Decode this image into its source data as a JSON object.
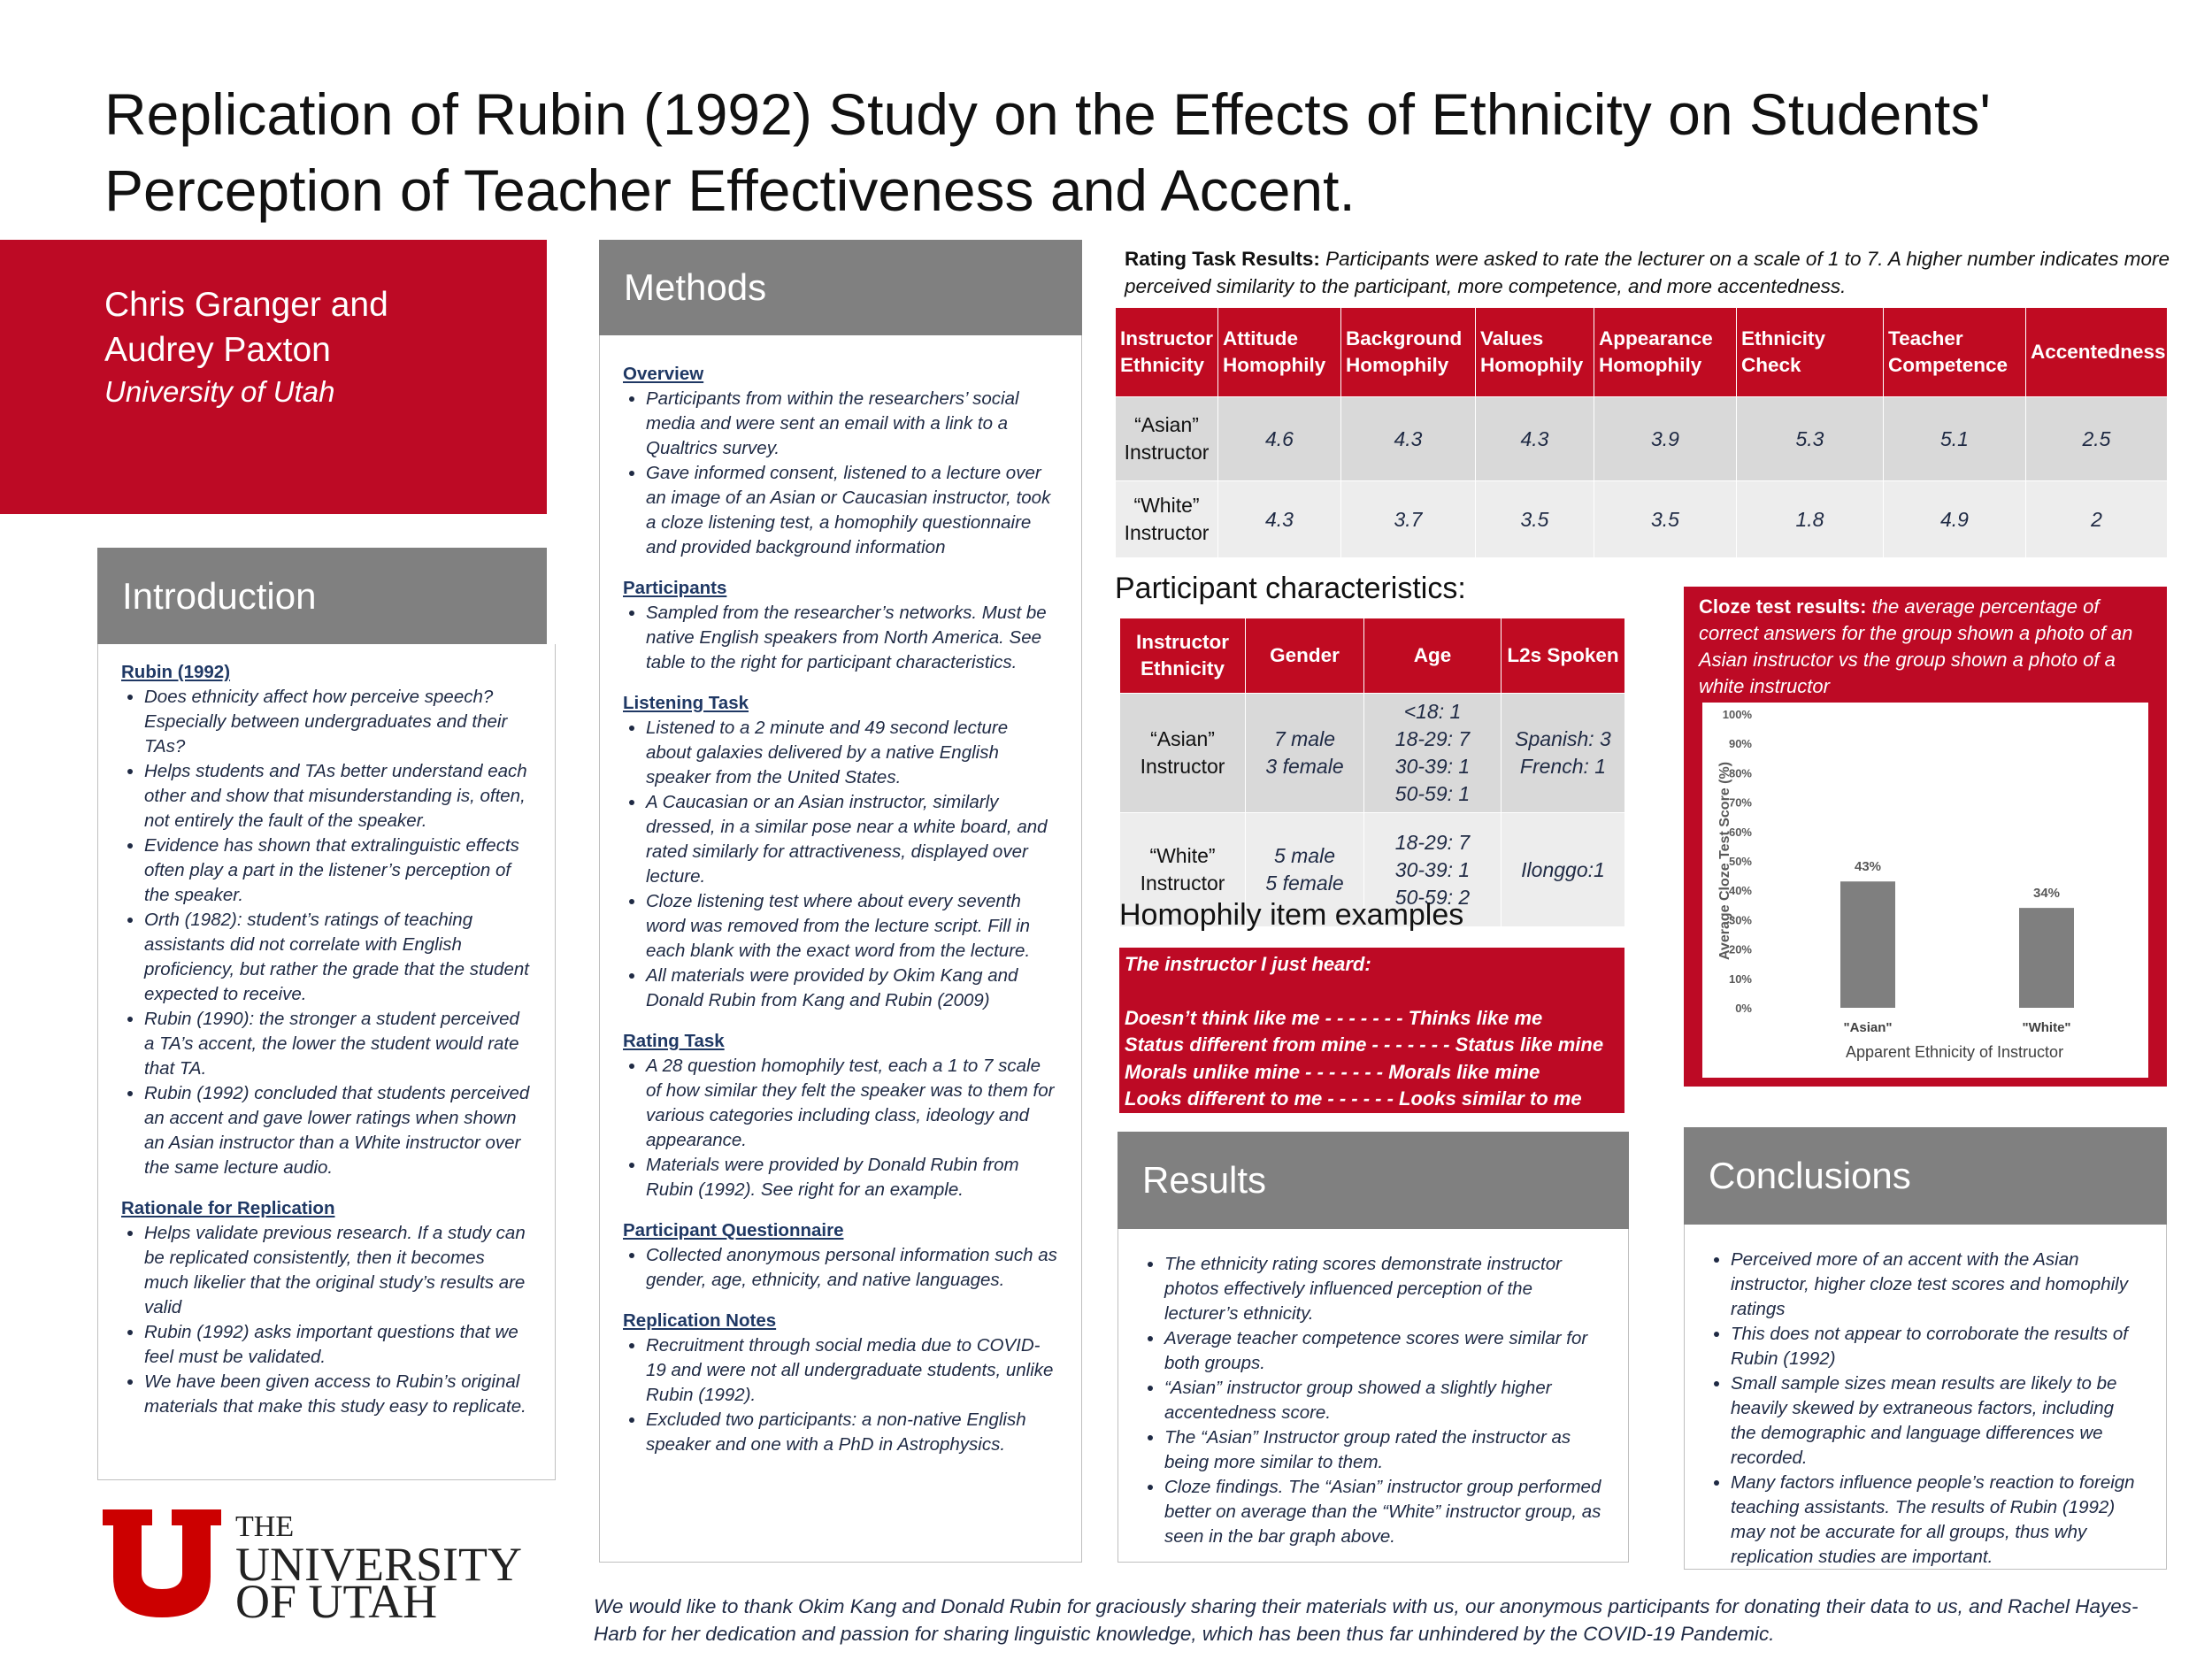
{
  "title": [
    "Replication of Rubin (1992) Study on the Effects of Ethnicity on Students'",
    "Perception of Teacher Effectiveness and Accent."
  ],
  "authors": {
    "line1": "Chris Granger and",
    "line2": "Audrey Paxton",
    "affiliation": "University of Utah"
  },
  "introduction": {
    "header": "Introduction",
    "blocks": [
      {
        "heading": "Rubin (1992)",
        "items": [
          "Does ethnicity affect how perceive speech? Especially between undergraduates and their TAs?",
          "Helps students and TAs better understand each other and show that misunderstanding is, often, not entirely the fault of the speaker.",
          "Evidence has shown that extralinguistic effects often play a part in the listener’s perception of the speaker.",
          "Orth (1982):  student’s ratings of teaching assistants did not correlate with English proficiency, but rather the grade that the student expected to receive.",
          "Rubin (1990): the stronger a student perceived a TA’s accent, the lower the student would rate that TA.",
          "Rubin (1992) concluded that  students perceived an accent and gave lower ratings when shown an Asian instructor than a White instructor over the same lecture audio."
        ]
      },
      {
        "heading": "Rationale for Replication",
        "items": [
          "Helps validate previous research. If a study can be replicated consistently, then it becomes much likelier that the original study’s results are valid",
          "Rubin (1992) asks important questions that we feel must be validated.",
          "We have been given access to Rubin’s original materials that make this study easy to replicate."
        ]
      }
    ]
  },
  "methods": {
    "header": "Methods",
    "blocks": [
      {
        "heading": "Overview",
        "items": [
          "Participants from within the researchers’ social media and were sent an email with a link to a Qualtrics survey.",
          "Gave informed consent, listened to a lecture over an image of an Asian or Caucasian instructor, took a cloze listening test, a homophily questionnaire and provided background information"
        ]
      },
      {
        "heading": "Participants",
        "items": [
          "Sampled from the researcher’s networks. Must be native English speakers from North America. See table to the right for participant characteristics."
        ]
      },
      {
        "heading": "Listening Task",
        "items": [
          "Listened to a 2 minute and 49 second lecture about galaxies delivered by a native English speaker from the United States.",
          " A Caucasian or an Asian instructor, similarly dressed, in a similar pose near a white board, and rated similarly for attractiveness, displayed over lecture.",
          "Cloze listening test where about every seventh word was removed from the lecture script. Fill in each blank with the exact word from the lecture.",
          "All materials were provided  by Okim Kang and Donald Rubin from Kang and Rubin (2009)"
        ]
      },
      {
        "heading": "Rating Task",
        "items": [
          "A 28 question homophily test, each a 1 to 7 scale of how similar they felt the speaker was to them for various categories including class, ideology and appearance.",
          "Materials were provided  by Donald Rubin from Rubin (1992). See right for an example."
        ]
      },
      {
        "heading": "Participant Questionnaire",
        "items": [
          "Collected anonymous personal information such as gender, age, ethnicity, and native languages."
        ]
      },
      {
        "heading": "Replication Notes",
        "items": [
          "Recruitment through social media due to COVID-19 and were not all undergraduate students, unlike Rubin (1992).",
          "Excluded two participants:  a non-native English speaker and one with a PhD in Astrophysics."
        ]
      }
    ]
  },
  "rating_results": {
    "label": "Rating Task Results:",
    "text": "Participants were asked to rate the lecturer on a scale of 1 to 7. A higher number indicates more perceived similarity to the participant, more competence, and more accentedness."
  },
  "rating_table": {
    "headers": [
      "Instructor Ethnicity",
      "Attitude Homophily",
      "Background Homophily",
      "Values Homophily",
      "Appearance Homophily",
      "Ethnicity Check",
      "Teacher Competence",
      "Accentedness"
    ],
    "rows": [
      [
        "“Asian” Instructor",
        4.6,
        4.3,
        4.3,
        3.9,
        5.3,
        5.1,
        2.5
      ],
      [
        "“White” Instructor",
        4.3,
        3.7,
        3.5,
        3.5,
        1.8,
        4.9,
        2.0
      ]
    ]
  },
  "participant_heading": "Participant characteristics:",
  "participant_table": {
    "headers": [
      "Instructor Ethnicity",
      "Gender",
      "Age",
      "L2s Spoken"
    ],
    "rows": [
      [
        [
          "“Asian”",
          "Instructor"
        ],
        [
          "7 male",
          "3 female"
        ],
        [
          "<18: 1",
          "18-29: 7",
          "30-39: 1",
          "50-59: 1"
        ],
        [
          "Spanish: 3",
          "French: 1"
        ]
      ],
      [
        [
          "“White”",
          "Instructor"
        ],
        [
          "5 male",
          "5 female"
        ],
        [
          "18-29: 7",
          "30-39: 1",
          "50-59: 2"
        ],
        [
          "Ilonggo:1"
        ]
      ]
    ]
  },
  "homophily_heading": "Homophily item examples",
  "homophily": {
    "lead": "The instructor I just heard:",
    "lines": [
      "Doesn’t think like me  - - - - - - - Thinks like me",
      "Status different from  mine - - - - - - - Status like mine",
      "Morals unlike mine - - - - - - - Morals like mine",
      "Looks different to me - - - - - - Looks similar to me"
    ]
  },
  "cloze": {
    "label": "Cloze test results:",
    "text": "the average percentage of correct answers for the group shown a photo of an Asian instructor vs the group shown a photo of a white instructor"
  },
  "chart_data": {
    "type": "bar",
    "categories": [
      "\"Asian\"",
      "\"White\""
    ],
    "values": [
      43,
      34
    ],
    "value_labels": [
      "43%",
      "34%"
    ],
    "color": "#7f7f7f",
    "ylim": [
      0,
      100
    ],
    "yticks": [
      {
        "value": 0,
        "label": "0%"
      },
      {
        "value": 10,
        "label": "10%"
      },
      {
        "value": 20,
        "label": "20%"
      },
      {
        "value": 30,
        "label": "30%"
      },
      {
        "value": 40,
        "label": "40%"
      },
      {
        "value": 50,
        "label": "50%"
      },
      {
        "value": 60,
        "label": "60%"
      },
      {
        "value": 70,
        "label": "70%"
      },
      {
        "value": 80,
        "label": "80%"
      },
      {
        "value": 90,
        "label": "90%"
      },
      {
        "value": 100,
        "label": "100%"
      }
    ],
    "x_label": "Apparent Ethnicity of Instructor",
    "y_label": "Average Cloze Test Score (%)"
  },
  "results": {
    "header": "Results",
    "items": [
      "The ethnicity rating scores demonstrate instructor photos effectively  influenced perception of the lecturer’s ethnicity.",
      "Average teacher competence scores were similar for both groups.",
      "“Asian” instructor group showed a slightly higher accentedness score.",
      "The “Asian” Instructor group rated the instructor as being more similar to them.",
      "Cloze findings. The “Asian” instructor group performed better on average than the “White” instructor group, as seen in the bar graph above."
    ]
  },
  "conclusions": {
    "header": "Conclusions",
    "items": [
      "Perceived more of an accent with the Asian instructor, higher cloze test scores  and homophily ratings",
      "This does not appear to corroborate the results of Rubin (1992)",
      "Small sample sizes mean results are likely to be heavily skewed by extraneous factors, including the demographic and language differences we recorded.",
      "Many factors influence people’s reaction to foreign teaching assistants. The results of Rubin (1992) may not be accurate for all groups, thus why replication studies are important."
    ]
  },
  "logo": {
    "the": "THE",
    "university": "UNIVERSITY",
    "of_utah": "OF UTAH"
  },
  "acknowledgment": "We would like to thank Okim Kang and Donald Rubin for graciously sharing their materials with us, our anonymous participants for donating their data to us, and Rachel Hayes-Harb for her dedication and passion for sharing linguistic knowledge, which has been thus far unhindered by the COVID-19 Pandemic."
}
